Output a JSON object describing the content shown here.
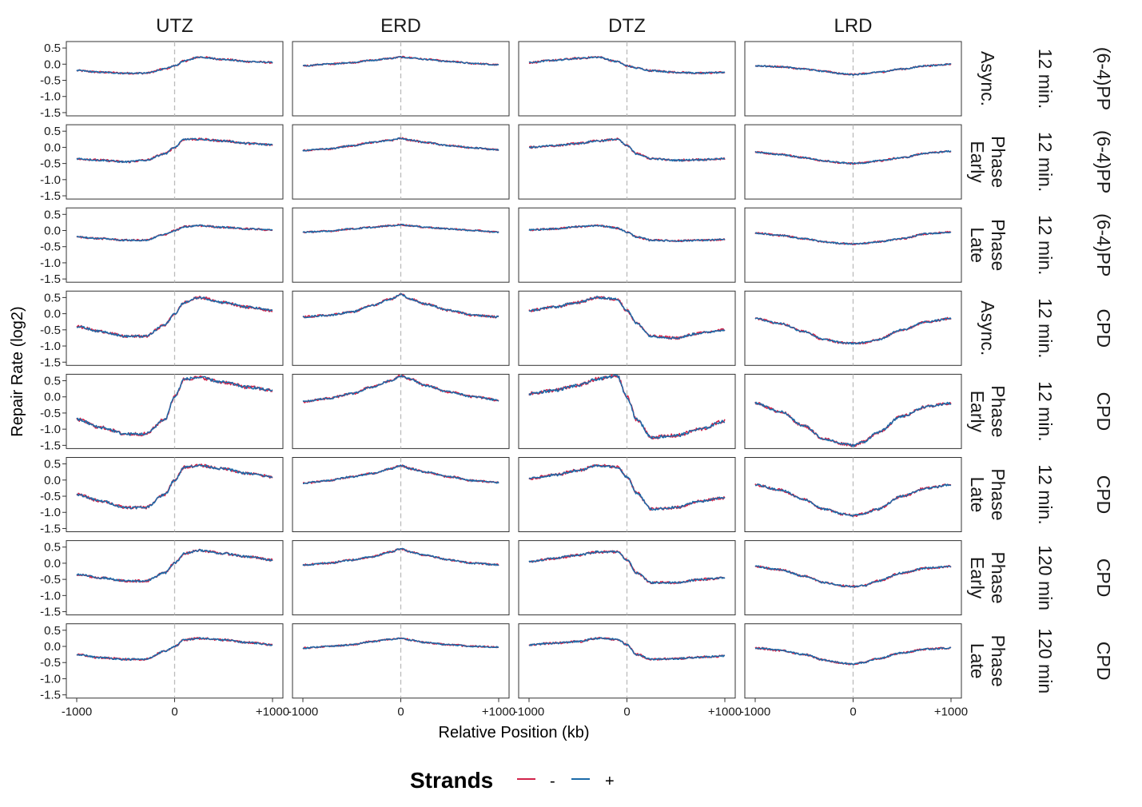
{
  "chart_data": {
    "type": "line",
    "xlabel": "Relative Position (kb)",
    "ylabel": "Repair Rate (log2)",
    "x_ticks": [
      "-1000",
      "0",
      "+1000"
    ],
    "x_tick_values": [
      -1000,
      0,
      1000
    ],
    "xlim": [
      -1000,
      1000
    ],
    "ylim": [
      -1.6,
      0.7
    ],
    "y_ticks": [
      "0.5",
      "0.0",
      "-0.5",
      "-1.0",
      "-1.5"
    ],
    "y_tick_values": [
      0.5,
      0.0,
      -0.5,
      -1.0,
      -1.5
    ],
    "reference_line_x": 0,
    "columns": [
      "UTZ",
      "ERD",
      "DTZ",
      "LRD"
    ],
    "rows": [
      {
        "labels": [
          "Async.",
          "12 min.",
          "(6-4)PP"
        ]
      },
      {
        "labels": [
          "Early\nPhase",
          "12 min.",
          "(6-4)PP"
        ]
      },
      {
        "labels": [
          "Late\nPhase",
          "12 min.",
          "(6-4)PP"
        ]
      },
      {
        "labels": [
          "Async.",
          "12 min.",
          "CPD"
        ]
      },
      {
        "labels": [
          "Early\nPhase",
          "12 min.",
          "CPD"
        ]
      },
      {
        "labels": [
          "Late\nPhase",
          "12 min.",
          "CPD"
        ]
      },
      {
        "labels": [
          "Early\nPhase",
          "120 min",
          "CPD"
        ]
      },
      {
        "labels": [
          "Late\nPhase",
          "120 min",
          "CPD"
        ]
      }
    ],
    "curve_x": [
      -1000,
      -750,
      -500,
      -300,
      -100,
      0,
      100,
      250,
      500,
      750,
      1000
    ],
    "panels": [
      [
        [
          -0.2,
          -0.25,
          -0.28,
          -0.28,
          -0.15,
          -0.05,
          0.1,
          0.22,
          0.15,
          0.08,
          0.05
        ],
        [
          -0.05,
          0.0,
          0.05,
          0.12,
          0.18,
          0.22,
          0.2,
          0.15,
          0.08,
          0.02,
          -0.02
        ],
        [
          0.05,
          0.12,
          0.18,
          0.22,
          0.08,
          -0.05,
          -0.12,
          -0.2,
          -0.25,
          -0.28,
          -0.25
        ],
        [
          -0.05,
          -0.08,
          -0.15,
          -0.22,
          -0.3,
          -0.32,
          -0.3,
          -0.25,
          -0.15,
          -0.05,
          0.0
        ]
      ],
      [
        [
          -0.35,
          -0.4,
          -0.45,
          -0.4,
          -0.2,
          0.0,
          0.25,
          0.25,
          0.2,
          0.12,
          0.08
        ],
        [
          -0.1,
          -0.05,
          0.05,
          0.15,
          0.22,
          0.28,
          0.22,
          0.15,
          0.05,
          -0.02,
          -0.08
        ],
        [
          0.0,
          0.05,
          0.12,
          0.2,
          0.25,
          0.05,
          -0.2,
          -0.35,
          -0.4,
          -0.38,
          -0.35
        ],
        [
          -0.15,
          -0.22,
          -0.32,
          -0.42,
          -0.48,
          -0.5,
          -0.48,
          -0.42,
          -0.32,
          -0.18,
          -0.12
        ]
      ],
      [
        [
          -0.2,
          -0.25,
          -0.3,
          -0.3,
          -0.12,
          0.0,
          0.12,
          0.15,
          0.1,
          0.05,
          0.02
        ],
        [
          -0.05,
          -0.02,
          0.05,
          0.1,
          0.15,
          0.18,
          0.15,
          0.1,
          0.05,
          0.0,
          -0.05
        ],
        [
          0.02,
          0.05,
          0.12,
          0.15,
          0.08,
          -0.05,
          -0.2,
          -0.3,
          -0.32,
          -0.3,
          -0.28
        ],
        [
          -0.08,
          -0.15,
          -0.25,
          -0.35,
          -0.4,
          -0.42,
          -0.4,
          -0.35,
          -0.25,
          -0.1,
          -0.05
        ]
      ],
      [
        [
          -0.4,
          -0.55,
          -0.7,
          -0.7,
          -0.35,
          0.0,
          0.35,
          0.5,
          0.35,
          0.2,
          0.1
        ],
        [
          -0.1,
          -0.05,
          0.05,
          0.25,
          0.45,
          0.6,
          0.45,
          0.3,
          0.1,
          -0.05,
          -0.1
        ],
        [
          0.1,
          0.2,
          0.35,
          0.5,
          0.45,
          0.1,
          -0.3,
          -0.7,
          -0.75,
          -0.6,
          -0.5
        ],
        [
          -0.15,
          -0.3,
          -0.55,
          -0.8,
          -0.9,
          -0.92,
          -0.9,
          -0.8,
          -0.5,
          -0.25,
          -0.15
        ]
      ],
      [
        [
          -0.7,
          -0.95,
          -1.15,
          -1.15,
          -0.7,
          0.0,
          0.55,
          0.6,
          0.45,
          0.3,
          0.2
        ],
        [
          -0.15,
          -0.05,
          0.1,
          0.3,
          0.5,
          0.65,
          0.55,
          0.35,
          0.15,
          0.0,
          -0.1
        ],
        [
          0.1,
          0.2,
          0.35,
          0.55,
          0.65,
          0.0,
          -0.7,
          -1.25,
          -1.2,
          -1.0,
          -0.75
        ],
        [
          -0.2,
          -0.45,
          -0.9,
          -1.3,
          -1.45,
          -1.5,
          -1.4,
          -1.1,
          -0.6,
          -0.3,
          -0.2
        ]
      ],
      [
        [
          -0.45,
          -0.65,
          -0.85,
          -0.85,
          -0.45,
          0.0,
          0.4,
          0.45,
          0.35,
          0.2,
          0.1
        ],
        [
          -0.1,
          -0.02,
          0.1,
          0.2,
          0.35,
          0.45,
          0.35,
          0.25,
          0.1,
          -0.02,
          -0.08
        ],
        [
          0.05,
          0.15,
          0.3,
          0.45,
          0.4,
          0.1,
          -0.4,
          -0.9,
          -0.85,
          -0.65,
          -0.55
        ],
        [
          -0.15,
          -0.3,
          -0.6,
          -0.9,
          -1.05,
          -1.1,
          -1.05,
          -0.9,
          -0.5,
          -0.25,
          -0.15
        ]
      ],
      [
        [
          -0.35,
          -0.45,
          -0.55,
          -0.55,
          -0.3,
          0.0,
          0.3,
          0.4,
          0.3,
          0.2,
          0.1
        ],
        [
          -0.05,
          0.0,
          0.1,
          0.2,
          0.35,
          0.45,
          0.35,
          0.25,
          0.1,
          0.0,
          -0.05
        ],
        [
          0.05,
          0.15,
          0.25,
          0.35,
          0.35,
          0.1,
          -0.3,
          -0.6,
          -0.6,
          -0.5,
          -0.45
        ],
        [
          -0.1,
          -0.2,
          -0.4,
          -0.6,
          -0.7,
          -0.72,
          -0.7,
          -0.55,
          -0.3,
          -0.15,
          -0.1
        ]
      ],
      [
        [
          -0.25,
          -0.35,
          -0.4,
          -0.4,
          -0.15,
          0.0,
          0.2,
          0.25,
          0.2,
          0.12,
          0.05
        ],
        [
          -0.05,
          0.0,
          0.05,
          0.15,
          0.22,
          0.25,
          0.2,
          0.12,
          0.05,
          0.0,
          -0.02
        ],
        [
          0.05,
          0.1,
          0.15,
          0.25,
          0.22,
          0.05,
          -0.25,
          -0.4,
          -0.38,
          -0.33,
          -0.3
        ],
        [
          -0.05,
          -0.12,
          -0.25,
          -0.42,
          -0.52,
          -0.55,
          -0.5,
          -0.38,
          -0.2,
          -0.08,
          -0.05
        ]
      ]
    ],
    "legend": {
      "title": "Strands",
      "placement": "bottom",
      "entries": [
        {
          "label": "-",
          "color": "#d1234a"
        },
        {
          "label": "+",
          "color": "#1a6aa8"
        }
      ]
    }
  }
}
